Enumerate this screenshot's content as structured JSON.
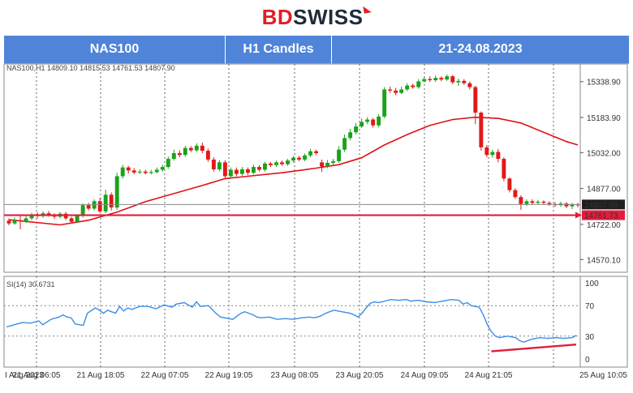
{
  "brand": {
    "bd": "BD",
    "swiss": "SWISS"
  },
  "banner": {
    "symbol": "NAS100",
    "timeframe": "H1 Candles",
    "dates": "21-24.08.2023"
  },
  "chart_data": {
    "type": "candlestick",
    "price_header": "NAS100,H1 14809.10 14815.53 14761.53 14807.90",
    "y_ticks": [
      15338.9,
      15183.9,
      15032.0,
      14877.0,
      14722.0,
      14570.1
    ],
    "ylim": [
      14515,
      15415
    ],
    "price_labels": {
      "current": "14807.90",
      "support": "14761.73"
    },
    "current_price": 14807.9,
    "support_level": 14761.73,
    "x_labels": [
      "I Aug 2023",
      "21 Aug 06:05",
      "21 Aug 18:05",
      "22 Aug 07:05",
      "22 Aug 19:05",
      "23 Aug 08:05",
      "23 Aug 20:05",
      "24 Aug 09:05",
      "24 Aug 21:05",
      "25 Aug 10:05"
    ],
    "candles": [
      [
        14738,
        14726,
        14748,
        14718
      ],
      [
        14726,
        14740,
        14752,
        14720
      ],
      [
        14740,
        14735,
        14760,
        14700
      ],
      [
        14735,
        14748,
        14760,
        14728
      ],
      [
        14748,
        14765,
        14772,
        14740
      ],
      [
        14765,
        14758,
        14775,
        14748
      ],
      [
        14758,
        14770,
        14778,
        14750
      ],
      [
        14770,
        14762,
        14780,
        14755
      ],
      [
        14762,
        14755,
        14770,
        14745
      ],
      [
        14755,
        14768,
        14775,
        14748
      ],
      [
        14768,
        14748,
        14776,
        14740
      ],
      [
        14748,
        14733,
        14755,
        14728
      ],
      [
        14733,
        14760,
        14765,
        14728
      ],
      [
        14760,
        14805,
        14812,
        14752
      ],
      [
        14805,
        14790,
        14815,
        14782
      ],
      [
        14790,
        14822,
        14830,
        14782
      ],
      [
        14822,
        14778,
        14835,
        14770
      ],
      [
        14778,
        14850,
        14872,
        14770
      ],
      [
        14850,
        14795,
        14860,
        14782
      ],
      [
        14795,
        14930,
        14945,
        14785
      ],
      [
        14930,
        14968,
        14980,
        14920
      ],
      [
        14968,
        14955,
        14975,
        14942
      ],
      [
        14955,
        14946,
        14965,
        14938
      ],
      [
        14946,
        14950,
        14960,
        14940
      ],
      [
        14950,
        14944,
        14958,
        14938
      ],
      [
        14944,
        14948,
        14958,
        14938
      ],
      [
        14948,
        14958,
        14968,
        14942
      ],
      [
        14958,
        14970,
        14980,
        14950
      ],
      [
        14970,
        15005,
        15015,
        14962
      ],
      [
        15005,
        15030,
        15045,
        14998
      ],
      [
        15030,
        15022,
        15042,
        15012
      ],
      [
        15022,
        15052,
        15062,
        15014
      ],
      [
        15052,
        15042,
        15060,
        15034
      ],
      [
        15042,
        15062,
        15072,
        15034
      ],
      [
        15062,
        15040,
        15075,
        15030
      ],
      [
        15040,
        15002,
        15050,
        14992
      ],
      [
        15002,
        14960,
        15012,
        14950
      ],
      [
        14960,
        14990,
        15000,
        14952
      ],
      [
        14990,
        14930,
        15000,
        14920
      ],
      [
        14930,
        14958,
        14968,
        14920
      ],
      [
        14958,
        14940,
        14968,
        14930
      ],
      [
        14940,
        14960,
        14970,
        14932
      ],
      [
        14960,
        14945,
        14968,
        14935
      ],
      [
        14945,
        14970,
        14980,
        14938
      ],
      [
        14970,
        14958,
        14978,
        14950
      ],
      [
        14958,
        14985,
        14992,
        14950
      ],
      [
        14985,
        14978,
        14992,
        14970
      ],
      [
        14978,
        14990,
        14998,
        14970
      ],
      [
        14990,
        14982,
        14998,
        14975
      ],
      [
        14982,
        14998,
        15005,
        14975
      ],
      [
        14998,
        15010,
        15018,
        14990
      ],
      [
        15010,
        15002,
        15018,
        14995
      ],
      [
        15002,
        15020,
        15028,
        14995
      ],
      [
        15020,
        15038,
        15048,
        15012
      ],
      [
        15038,
        15030,
        15045,
        15022
      ],
      [
        14990,
        14972,
        15002,
        14948
      ],
      [
        14972,
        14988,
        15000,
        14965
      ],
      [
        14988,
        14995,
        15005,
        14980
      ],
      [
        14995,
        15045,
        15060,
        14988
      ],
      [
        15045,
        15095,
        15110,
        15035
      ],
      [
        15095,
        15120,
        15135,
        15085
      ],
      [
        15120,
        15145,
        15160,
        15112
      ],
      [
        15145,
        15165,
        15180,
        15138
      ],
      [
        15165,
        15175,
        15185,
        15155
      ],
      [
        15175,
        15150,
        15182,
        15140
      ],
      [
        15150,
        15188,
        15198,
        15142
      ],
      [
        15188,
        15305,
        15315,
        15180
      ],
      [
        15305,
        15300,
        15318,
        15290
      ],
      [
        15300,
        15290,
        15312,
        15280
      ],
      [
        15290,
        15305,
        15318,
        15285
      ],
      [
        15305,
        15322,
        15332,
        15298
      ],
      [
        15322,
        15315,
        15330,
        15308
      ],
      [
        15315,
        15340,
        15350,
        15308
      ],
      [
        15340,
        15350,
        15360,
        15335
      ],
      [
        15350,
        15345,
        15362,
        15338
      ],
      [
        15345,
        15355,
        15365,
        15338
      ],
      [
        15355,
        15348,
        15362,
        15340
      ],
      [
        15348,
        15362,
        15370,
        15342
      ],
      [
        15362,
        15336,
        15368,
        15328
      ],
      [
        15336,
        15342,
        15352,
        15320
      ],
      [
        15342,
        15332,
        15350,
        15325
      ],
      [
        15332,
        15315,
        15340,
        15305
      ],
      [
        15315,
        15205,
        15322,
        15155
      ],
      [
        15205,
        15055,
        15210,
        15040
      ],
      [
        15055,
        15022,
        15065,
        15012
      ],
      [
        15022,
        15035,
        15045,
        15010
      ],
      [
        15035,
        15005,
        15048,
        14990
      ],
      [
        15005,
        14920,
        15012,
        14908
      ],
      [
        14920,
        14870,
        14925,
        14860
      ],
      [
        14870,
        14840,
        14878,
        14832
      ],
      [
        14840,
        14810,
        14848,
        14785
      ],
      [
        14810,
        14822,
        14830,
        14802
      ],
      [
        14822,
        14815,
        14830,
        14808
      ],
      [
        14815,
        14820,
        14828,
        14810
      ],
      [
        14820,
        14815,
        14826,
        14808
      ],
      [
        14815,
        14810,
        14822,
        14802
      ],
      [
        14810,
        14805,
        14818,
        14798
      ],
      [
        14805,
        14812,
        14820,
        14798
      ],
      [
        14812,
        14800,
        14818,
        14792
      ],
      [
        14800,
        14808,
        14815,
        14788
      ],
      [
        14808,
        14805,
        14815,
        14795
      ]
    ],
    "ma": [
      [
        0,
        14742
      ],
      [
        9,
        14720
      ],
      [
        14,
        14740
      ],
      [
        19,
        14775
      ],
      [
        24,
        14820
      ],
      [
        29,
        14855
      ],
      [
        34,
        14890
      ],
      [
        38,
        14920
      ],
      [
        42,
        14930
      ],
      [
        48,
        14945
      ],
      [
        54,
        14965
      ],
      [
        58,
        14980
      ],
      [
        62,
        15010
      ],
      [
        66,
        15065
      ],
      [
        70,
        15110
      ],
      [
        74,
        15150
      ],
      [
        78,
        15175
      ],
      [
        82,
        15185
      ],
      [
        86,
        15180
      ],
      [
        90,
        15160
      ],
      [
        94,
        15120
      ],
      [
        98,
        15080
      ],
      [
        100,
        15065
      ]
    ],
    "rsi_label": "SI(14) 30.6731",
    "rsi_ticks": [
      100,
      70,
      30,
      0
    ],
    "rsi_ylim": [
      0,
      100
    ],
    "rsi": [
      [
        0,
        42
      ],
      [
        2,
        45
      ],
      [
        4,
        48
      ],
      [
        6,
        47
      ],
      [
        8,
        50
      ],
      [
        9,
        45
      ],
      [
        11,
        52
      ],
      [
        13,
        55
      ],
      [
        14,
        58
      ],
      [
        15,
        55
      ],
      [
        16,
        54
      ],
      [
        17,
        46
      ],
      [
        19,
        44
      ],
      [
        20,
        60
      ],
      [
        22,
        67
      ],
      [
        23,
        64
      ],
      [
        24,
        60
      ],
      [
        25,
        64
      ],
      [
        27,
        60
      ],
      [
        28,
        69
      ],
      [
        29,
        63
      ],
      [
        30,
        67
      ],
      [
        31,
        65
      ],
      [
        33,
        69
      ],
      [
        35,
        69
      ],
      [
        37,
        66
      ],
      [
        39,
        71
      ],
      [
        41,
        68
      ],
      [
        42,
        72
      ],
      [
        44,
        74
      ],
      [
        45,
        71
      ],
      [
        46,
        68
      ],
      [
        47,
        75
      ],
      [
        48,
        69
      ],
      [
        50,
        70
      ],
      [
        52,
        59
      ],
      [
        53,
        55
      ],
      [
        55,
        53
      ],
      [
        56,
        52
      ],
      [
        58,
        60
      ],
      [
        59,
        62
      ],
      [
        60,
        60
      ],
      [
        61,
        58
      ],
      [
        62,
        55
      ],
      [
        63,
        54
      ],
      [
        65,
        55
      ],
      [
        67,
        52
      ],
      [
        69,
        53
      ],
      [
        71,
        52
      ],
      [
        73,
        54
      ],
      [
        75,
        55
      ],
      [
        76,
        54
      ],
      [
        77,
        55
      ],
      [
        78,
        57
      ],
      [
        79,
        60
      ],
      [
        80,
        62
      ],
      [
        81,
        64
      ],
      [
        83,
        62
      ],
      [
        85,
        60
      ],
      [
        86,
        58
      ],
      [
        87,
        55
      ],
      [
        88,
        60
      ],
      [
        89,
        67
      ],
      [
        90,
        73
      ],
      [
        91,
        75
      ],
      [
        92,
        74
      ],
      [
        93,
        75
      ],
      [
        95,
        78
      ],
      [
        97,
        77
      ],
      [
        99,
        78
      ],
      [
        100,
        76
      ],
      [
        102,
        77
      ],
      [
        104,
        75
      ],
      [
        106,
        74
      ],
      [
        108,
        76
      ],
      [
        110,
        78
      ],
      [
        112,
        77
      ],
      [
        113,
        72
      ],
      [
        114,
        74
      ],
      [
        115,
        70
      ],
      [
        117,
        68
      ],
      [
        118,
        58
      ],
      [
        119,
        45
      ],
      [
        120,
        36
      ],
      [
        121,
        30
      ],
      [
        122,
        28
      ],
      [
        124,
        30
      ],
      [
        126,
        28
      ],
      [
        127,
        24
      ],
      [
        128,
        22
      ],
      [
        130,
        26
      ],
      [
        132,
        28
      ],
      [
        134,
        27
      ],
      [
        136,
        28
      ],
      [
        138,
        27
      ],
      [
        140,
        28
      ],
      [
        141,
        31
      ]
    ],
    "rsi_trendline": [
      [
        120,
        10
      ],
      [
        141,
        19
      ]
    ]
  },
  "colors": {
    "bull": "#1aa31a",
    "bear": "#e11919",
    "ma": "#e00f18",
    "support": "#e01e3c",
    "rsi": "#3a8ee6",
    "grid": "#666666",
    "banner": "#4f84d8",
    "brand_red": "#e31d25",
    "brand_dark": "#1f2b3a"
  }
}
